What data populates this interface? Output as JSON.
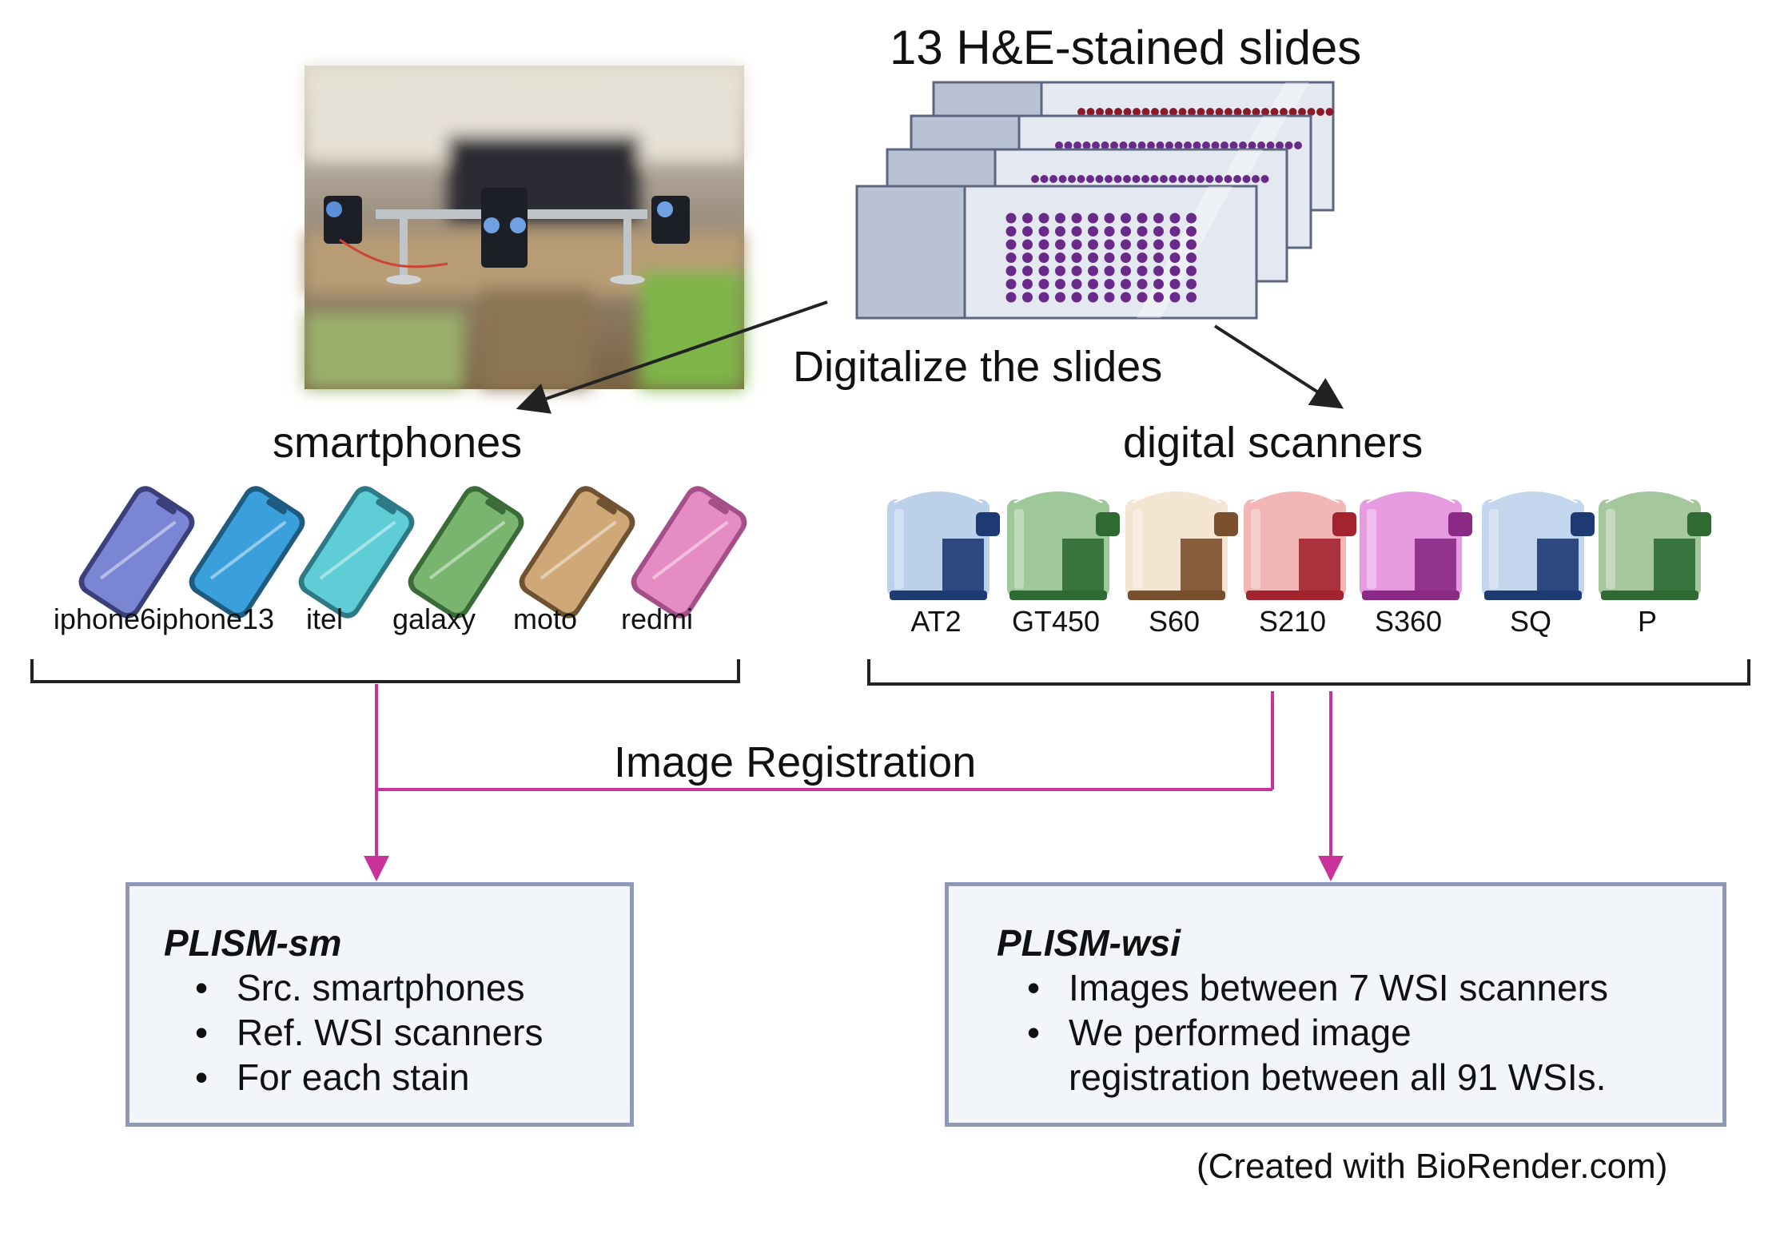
{
  "top": {
    "title": "13 H&E-stained slides",
    "digitalize": "Digitalize the slides"
  },
  "smartphones": {
    "heading": "smartphones",
    "devices": [
      {
        "label": "iphone6",
        "color": "#7a86d4",
        "dark": "#3b3f7a"
      },
      {
        "label": "iphone13",
        "color": "#3aa0dc",
        "dark": "#1f5a80"
      },
      {
        "label": "itel",
        "color": "#5ecdd6",
        "dark": "#2d7a86"
      },
      {
        "label": "galaxy",
        "color": "#79b56e",
        "dark": "#3c6b3a"
      },
      {
        "label": "moto",
        "color": "#cfa877",
        "dark": "#6e5231"
      },
      {
        "label": "redmi",
        "color": "#e58cc4",
        "dark": "#a54f88"
      }
    ]
  },
  "scanners": {
    "heading": "digital scanners",
    "devices": [
      {
        "label": "AT2",
        "color": "#bcd0ea",
        "dark": "#1d3a73"
      },
      {
        "label": "GT450",
        "color": "#9ec79a",
        "dark": "#2f6a33"
      },
      {
        "label": "S60",
        "color": "#f4e4d2",
        "dark": "#7a4f2e"
      },
      {
        "label": "S210",
        "color": "#f3b6b6",
        "dark": "#a3232f"
      },
      {
        "label": "S360",
        "color": "#e69be0",
        "dark": "#8a2a86"
      },
      {
        "label": "SQ",
        "color": "#c4d6ee",
        "dark": "#1d3a73"
      },
      {
        "label": "P",
        "color": "#a4c79e",
        "dark": "#2f6a33"
      }
    ]
  },
  "registration": "Image Registration",
  "boxes": {
    "sm": {
      "title": "PLISM-sm",
      "bullets": [
        "Src. smartphones",
        "Ref. WSI scanners",
        "For each stain"
      ]
    },
    "wsi": {
      "title": "PLISM-wsi",
      "bullets": [
        "Images between 7 WSI scanners",
        "We performed image",
        "registration between all 91 WSIs."
      ]
    }
  },
  "credit": "(Created with BioRender.com)",
  "colors": {
    "accent": "#c8329a",
    "bracket": "#222222",
    "box_border": "#8e99b8",
    "box_fill": "#f2f5fa",
    "slide_dot": "#6a2a8a",
    "slide_frame": "#5c6680"
  }
}
